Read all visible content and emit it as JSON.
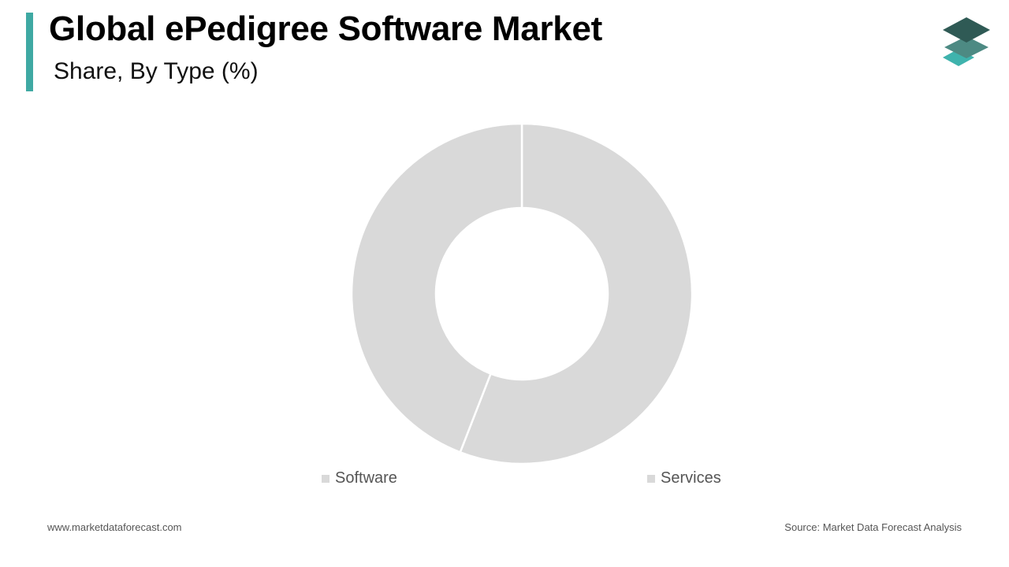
{
  "header": {
    "title": "Global ePedigree Software Market",
    "subtitle": "Share, By Type (%)"
  },
  "colors": {
    "accent": "#3fa9a3",
    "slice": "#d9d9d9",
    "logo_top": "#2f5a55",
    "logo_mid": "#4d8a83",
    "logo_bottom": "#3fb3ad"
  },
  "chart_data": {
    "type": "pie",
    "categories": [
      "Software",
      "Services"
    ],
    "values": [
      55.9,
      44.1
    ],
    "legend_position": "bottom"
  },
  "footer": {
    "website": "www.marketdataforecast.com",
    "source": "Source: Market Data Forecast Analysis"
  }
}
